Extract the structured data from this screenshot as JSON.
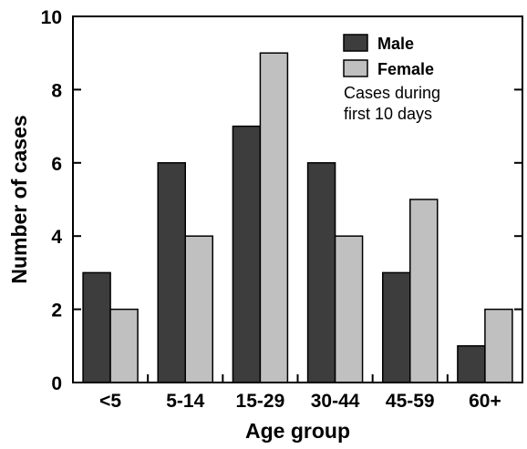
{
  "chart_data": {
    "type": "bar",
    "xlabel": "Age group",
    "ylabel": "Number of cases",
    "ylim": [
      0,
      10
    ],
    "yticks": [
      0,
      2,
      4,
      6,
      8,
      10
    ],
    "categories": [
      "<5",
      "5-14",
      "15-29",
      "30-44",
      "45-59",
      "60+"
    ],
    "series": [
      {
        "name": "Male",
        "color": "#3d3d3d",
        "values": [
          3,
          6,
          7,
          6,
          3,
          1
        ]
      },
      {
        "name": "Female",
        "color": "#c0c0c0",
        "values": [
          2,
          4,
          9,
          4,
          5,
          2
        ]
      }
    ],
    "annotation": [
      "Cases during",
      "first 10 days"
    ],
    "grid": false,
    "legend_position": "top-right"
  }
}
